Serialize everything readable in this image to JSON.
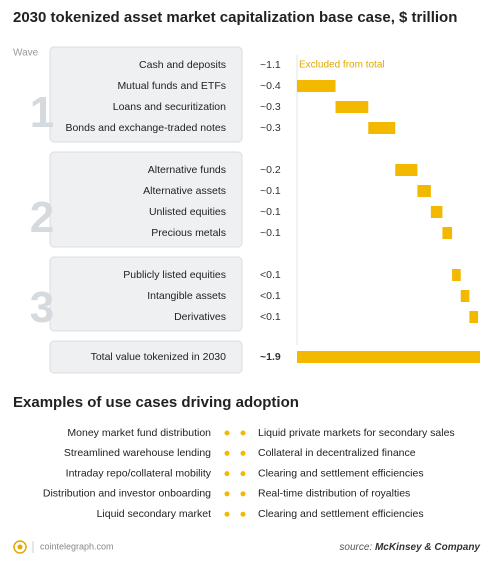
{
  "chart_data": {
    "type": "waterfall",
    "title": "2030 tokenized asset market capitalization base case, $ trillion",
    "group_label": "Wave",
    "color": "#f3b800",
    "note_color": "#e0a800",
    "xlim": [
      0,
      1.9
    ],
    "waves": [
      {
        "label": "1",
        "items": [
          {
            "name": "Cash and deposits",
            "value": 1.1,
            "value_label": "~1.1",
            "note": "Excluded from total"
          },
          {
            "name": "Mutual funds and ETFs",
            "value": 0.4,
            "value_label": "~0.4"
          },
          {
            "name": "Loans and securitization",
            "value": 0.34,
            "value_label": "~0.3"
          },
          {
            "name": "Bonds and exchange-traded notes",
            "value": 0.28,
            "value_label": "~0.3"
          }
        ]
      },
      {
        "label": "2",
        "items": [
          {
            "name": "Alternative funds",
            "value": 0.23,
            "value_label": "~0.2"
          },
          {
            "name": "Alternative assets",
            "value": 0.14,
            "value_label": "~0.1"
          },
          {
            "name": "Unlisted equities",
            "value": 0.12,
            "value_label": "~0.1"
          },
          {
            "name": "Precious metals",
            "value": 0.1,
            "value_label": "~0.1"
          }
        ]
      },
      {
        "label": "3",
        "items": [
          {
            "name": "Publicly listed equities",
            "value": 0.09,
            "value_label": "<0.1"
          },
          {
            "name": "Intangible assets",
            "value": 0.09,
            "value_label": "<0.1"
          },
          {
            "name": "Derivatives",
            "value": 0.09,
            "value_label": "<0.1"
          }
        ]
      }
    ],
    "total": {
      "name": "Total value tokenized in 2030",
      "value": 1.9,
      "value_label": "~1.9"
    }
  },
  "use_cases": {
    "title": "Examples of use cases driving adoption",
    "rows": [
      [
        "Money market fund distribution",
        "Liquid private markets for secondary sales"
      ],
      [
        "Streamlined warehouse lending",
        "Collateral in decentralized finance"
      ],
      [
        "Intraday repo/collateral mobility",
        "Clearing and settlement efficiencies"
      ],
      [
        "Distribution and investor onboarding",
        "Real-time distribution of royalties"
      ],
      [
        "Liquid secondary market",
        "Clearing and settlement efficiencies"
      ]
    ]
  },
  "footer": {
    "site": "cointelegraph.com",
    "source_prefix": "source:",
    "source": "McKinsey & Company"
  }
}
